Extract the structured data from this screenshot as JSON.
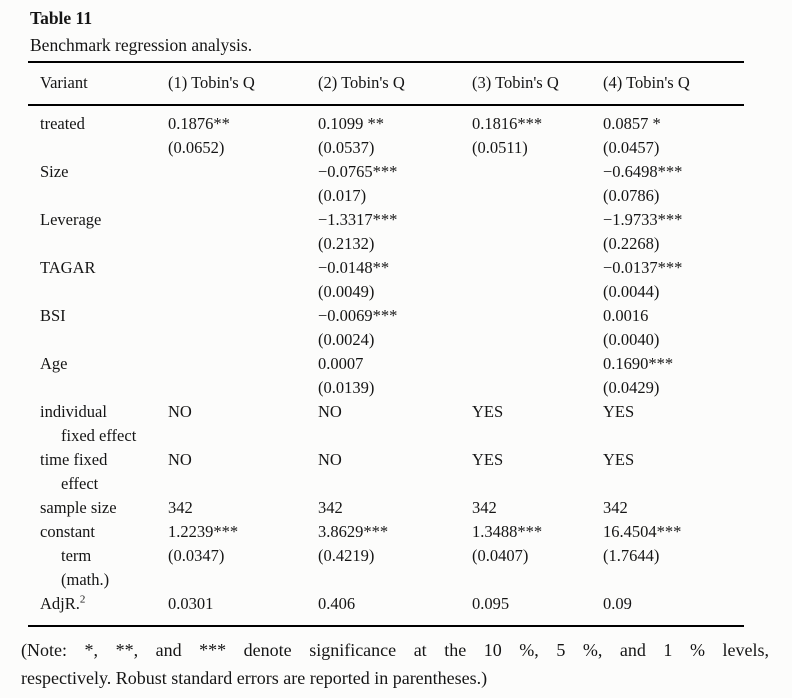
{
  "caption": {
    "title": "Table 11",
    "subtitle": "Benchmark regression analysis."
  },
  "table": {
    "columns": [
      "Variant",
      "(1) Tobin's Q",
      "(2) Tobin's Q",
      "(3) Tobin's Q",
      "(4) Tobin's Q"
    ],
    "rows": [
      {
        "label_lines": [
          "treated"
        ],
        "cells": [
          [
            "0.1876**",
            "(0.0652)"
          ],
          [
            "0.1099 **",
            "(0.0537)"
          ],
          [
            "0.1816***",
            "(0.0511)"
          ],
          [
            "0.0857 *",
            "(0.0457)"
          ]
        ]
      },
      {
        "label_lines": [
          "Size"
        ],
        "cells": [
          [],
          [
            "−0.0765***",
            "(0.017)"
          ],
          [],
          [
            "−0.6498***",
            "(0.0786)"
          ]
        ]
      },
      {
        "label_lines": [
          "Leverage"
        ],
        "cells": [
          [],
          [
            "−1.3317***",
            "(0.2132)"
          ],
          [],
          [
            "−1.9733***",
            "(0.2268)"
          ]
        ]
      },
      {
        "label_lines": [
          "TAGAR"
        ],
        "cells": [
          [],
          [
            "−0.0148**",
            "(0.0049)"
          ],
          [],
          [
            "−0.0137***",
            "(0.0044)"
          ]
        ]
      },
      {
        "label_lines": [
          "BSI"
        ],
        "cells": [
          [],
          [
            "−0.0069***",
            "(0.0024)"
          ],
          [],
          [
            "0.0016",
            "(0.0040)"
          ]
        ]
      },
      {
        "label_lines": [
          "Age"
        ],
        "cells": [
          [],
          [
            "0.0007",
            "(0.0139)"
          ],
          [],
          [
            "0.1690***",
            "(0.0429)"
          ]
        ]
      },
      {
        "label_lines": [
          "individual",
          "fixed effect"
        ],
        "cells": [
          [
            "NO"
          ],
          [
            "NO"
          ],
          [
            "YES"
          ],
          [
            "YES"
          ]
        ]
      },
      {
        "label_lines": [
          "time fixed",
          "effect"
        ],
        "cells": [
          [
            "NO"
          ],
          [
            "NO"
          ],
          [
            "YES"
          ],
          [
            "YES"
          ]
        ]
      },
      {
        "label_lines": [
          "sample size"
        ],
        "cells": [
          [
            "342"
          ],
          [
            "342"
          ],
          [
            "342"
          ],
          [
            "342"
          ]
        ]
      },
      {
        "label_lines": [
          "constant",
          "term",
          "(math.)"
        ],
        "cells": [
          [
            "1.2239***",
            "(0.0347)"
          ],
          [
            "3.8629***",
            "(0.4219)"
          ],
          [
            "1.3488***",
            "(0.0407)"
          ],
          [
            "16.4504***",
            "(1.7644)"
          ]
        ]
      },
      {
        "label_lines": [
          "AdjR."
        ],
        "label_sup": "2",
        "cells": [
          [
            "0.0301"
          ],
          [
            "0.406"
          ],
          [
            "0.095"
          ],
          [
            "0.09"
          ]
        ]
      }
    ]
  },
  "note": {
    "lines": [
      "(Note: *, **, and *** denote significance at the 10 %, 5 %, and 1 % levels,",
      "respectively. Robust standard errors are reported in parentheses.)"
    ]
  }
}
